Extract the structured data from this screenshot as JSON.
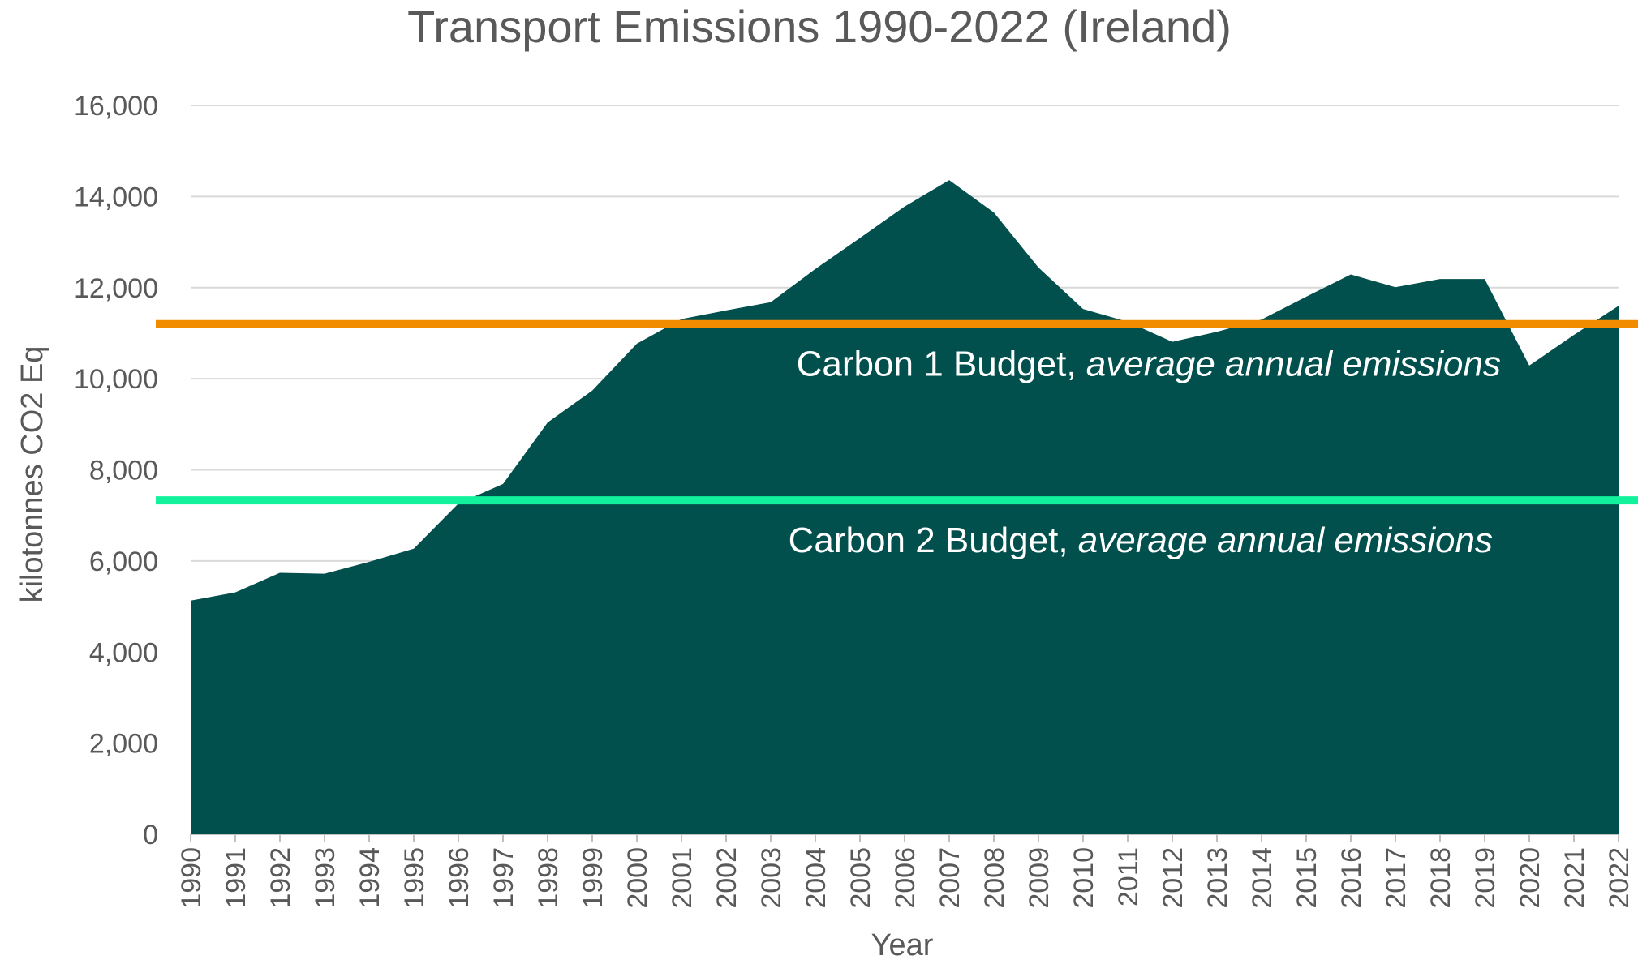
{
  "chart_data": {
    "type": "area",
    "title": "Transport Emissions 1990-2022 (Ireland)",
    "xlabel": "Year",
    "ylabel": "kilotonnes CO2 Eq",
    "ylim": [
      0,
      16000
    ],
    "yticks": [
      0,
      2000,
      4000,
      6000,
      8000,
      10000,
      12000,
      14000,
      16000
    ],
    "ytick_labels": [
      "0",
      "2,000",
      "4,000",
      "6,000",
      "8,000",
      "10,000",
      "12,000",
      "14,000",
      "16,000"
    ],
    "grid": true,
    "fill_color": "#02504D",
    "x": [
      "1990",
      "1991",
      "1992",
      "1993",
      "1994",
      "1995",
      "1996",
      "1997",
      "1998",
      "1999",
      "2000",
      "2001",
      "2002",
      "2003",
      "2004",
      "2005",
      "2006",
      "2007",
      "2008",
      "2009",
      "2010",
      "2011",
      "2012",
      "2013",
      "2014",
      "2015",
      "2016",
      "2017",
      "2018",
      "2019",
      "2020",
      "2021",
      "2022"
    ],
    "values": [
      5130,
      5310,
      5740,
      5720,
      5980,
      6270,
      7260,
      7690,
      9040,
      9740,
      10770,
      11310,
      11500,
      11680,
      12410,
      13090,
      13780,
      14360,
      13650,
      12440,
      11530,
      11250,
      10810,
      11030,
      11300,
      11800,
      12290,
      12010,
      12190,
      12190,
      10290,
      10960,
      11600
    ],
    "reference_lines": [
      {
        "value": 11200,
        "color": "#F18C00",
        "label": "Carbon 1 Budget, ",
        "label_italic": "average annual emissions"
      },
      {
        "value": 7330,
        "color": "#12F29C",
        "label": "Carbon 2 Budget, ",
        "label_italic": "average annual emissions"
      }
    ]
  }
}
